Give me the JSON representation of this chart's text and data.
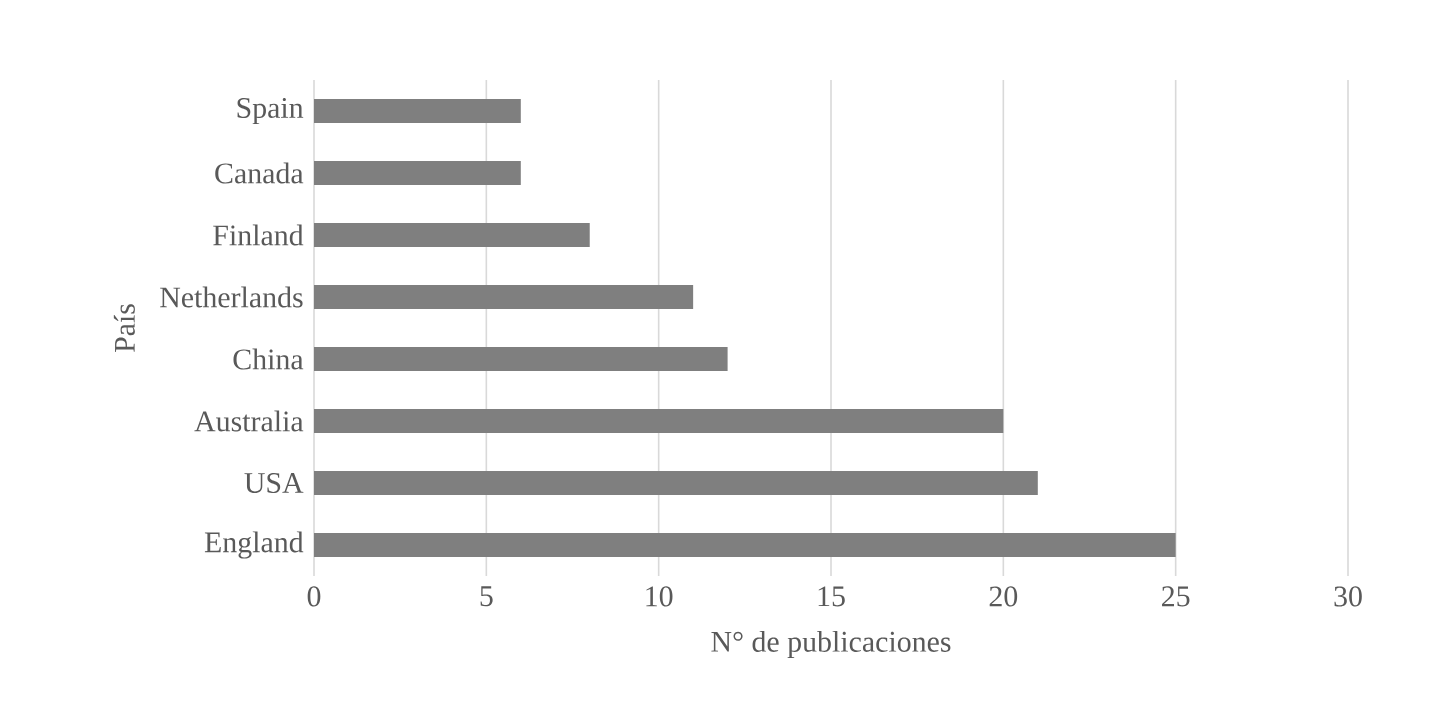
{
  "chart_data": {
    "type": "bar",
    "orientation": "horizontal",
    "xlabel": "N° de publicaciones",
    "ylabel": "País",
    "categories": [
      "Spain",
      "Canada",
      "Finland",
      "Netherlands",
      "China",
      "Australia",
      "USA",
      "England"
    ],
    "values": [
      6,
      6,
      8,
      11,
      12,
      20,
      21,
      25
    ],
    "color": "#7f7f7f",
    "xlim": [
      0,
      30
    ],
    "xticks": [
      0,
      5,
      10,
      15,
      20,
      25,
      30
    ],
    "grid": "x"
  }
}
